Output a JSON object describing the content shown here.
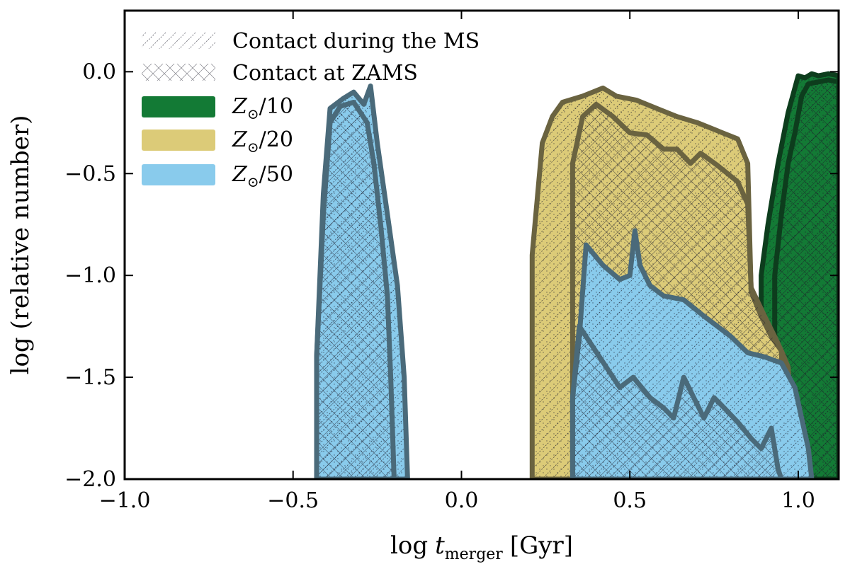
{
  "chart_data": {
    "type": "area",
    "xlabel_main": "log",
    "xlabel_var": "t",
    "xlabel_sub": "merger",
    "xlabel_unit": "[Gyr]",
    "ylabel": "log (relative number)",
    "xlim": [
      -1.0,
      1.12
    ],
    "ylim": [
      -2.0,
      0.3
    ],
    "xticks": [
      -1.0,
      -0.5,
      0.0,
      0.5,
      1.0
    ],
    "xtick_labels": [
      "−1.0",
      "−0.5",
      "0.0",
      "0.5",
      "1.0"
    ],
    "yticks": [
      0.0,
      -0.5,
      -1.0,
      -1.5,
      -2.0
    ],
    "ytick_labels": [
      "0.0",
      "−0.5",
      "−1.0",
      "−1.5",
      "−2.0"
    ],
    "grid": false,
    "legend_position": "top-left",
    "legend": [
      {
        "label": "Contact during the MS",
        "style": "hatch-single"
      },
      {
        "label": "Contact at ZAMS",
        "style": "hatch-cross"
      },
      {
        "label_var": "Z",
        "label_rest": "/10",
        "color": "#137a35"
      },
      {
        "label_var": "Z",
        "label_rest": "/20",
        "color": "#dccb78"
      },
      {
        "label_var": "Z",
        "label_rest": "/50",
        "color": "#89cbec"
      }
    ],
    "series": [
      {
        "name": "Z☉/10",
        "color": "#137a35",
        "edge": "#0d3d1d",
        "outer": [
          [
            0.89,
            -2.0
          ],
          [
            0.89,
            -1.0
          ],
          [
            0.91,
            -0.75
          ],
          [
            0.94,
            -0.45
          ],
          [
            0.97,
            -0.2
          ],
          [
            1.0,
            -0.02
          ],
          [
            1.02,
            -0.03
          ],
          [
            1.04,
            -0.01
          ],
          [
            1.06,
            -0.02
          ],
          [
            1.09,
            -0.01
          ],
          [
            1.12,
            -0.02
          ],
          [
            1.12,
            -2.0
          ]
        ],
        "contact_zams": [
          [
            0.93,
            -2.0
          ],
          [
            0.93,
            -1.0
          ],
          [
            0.95,
            -0.7
          ],
          [
            0.97,
            -0.45
          ],
          [
            0.99,
            -0.3
          ],
          [
            1.01,
            -0.12
          ],
          [
            1.03,
            -0.06
          ],
          [
            1.06,
            -0.05
          ],
          [
            1.09,
            -0.04
          ],
          [
            1.12,
            -0.05
          ],
          [
            1.12,
            -2.0
          ]
        ]
      },
      {
        "name": "Z☉/20",
        "color": "#dccb78",
        "edge": "#6a6340",
        "outer": [
          [
            0.21,
            -2.0
          ],
          [
            0.21,
            -0.9
          ],
          [
            0.24,
            -0.35
          ],
          [
            0.27,
            -0.22
          ],
          [
            0.3,
            -0.15
          ],
          [
            0.36,
            -0.12
          ],
          [
            0.42,
            -0.08
          ],
          [
            0.46,
            -0.12
          ],
          [
            0.52,
            -0.14
          ],
          [
            0.58,
            -0.18
          ],
          [
            0.64,
            -0.22
          ],
          [
            0.7,
            -0.25
          ],
          [
            0.76,
            -0.29
          ],
          [
            0.82,
            -0.33
          ],
          [
            0.85,
            -0.45
          ],
          [
            0.86,
            -1.08
          ],
          [
            0.89,
            -1.2
          ],
          [
            0.92,
            -1.3
          ],
          [
            0.95,
            -1.37
          ],
          [
            0.97,
            -1.45
          ],
          [
            0.99,
            -2.0
          ]
        ],
        "contact_zams": [
          [
            0.33,
            -2.0
          ],
          [
            0.33,
            -0.45
          ],
          [
            0.36,
            -0.22
          ],
          [
            0.4,
            -0.16
          ],
          [
            0.45,
            -0.22
          ],
          [
            0.5,
            -0.3
          ],
          [
            0.55,
            -0.31
          ],
          [
            0.6,
            -0.38
          ],
          [
            0.64,
            -0.38
          ],
          [
            0.68,
            -0.45
          ],
          [
            0.71,
            -0.4
          ],
          [
            0.76,
            -0.46
          ],
          [
            0.82,
            -0.54
          ],
          [
            0.85,
            -0.65
          ],
          [
            0.86,
            -1.06
          ],
          [
            0.9,
            -1.2
          ],
          [
            0.93,
            -1.3
          ],
          [
            0.95,
            -1.37
          ],
          [
            0.96,
            -2.0
          ]
        ]
      },
      {
        "name": "Z☉/50",
        "color": "#89cbec",
        "edge": "#4a6a7a",
        "outer_left": [
          [
            -0.43,
            -2.0
          ],
          [
            -0.43,
            -1.4
          ],
          [
            -0.41,
            -0.6
          ],
          [
            -0.39,
            -0.18
          ],
          [
            -0.35,
            -0.13
          ],
          [
            -0.32,
            -0.1
          ],
          [
            -0.29,
            -0.16
          ],
          [
            -0.27,
            -0.07
          ],
          [
            -0.25,
            -0.35
          ],
          [
            -0.22,
            -0.7
          ],
          [
            -0.19,
            -1.05
          ],
          [
            -0.17,
            -1.5
          ],
          [
            -0.16,
            -2.0
          ]
        ],
        "zams_left": [
          [
            -0.43,
            -2.0
          ],
          [
            -0.43,
            -1.4
          ],
          [
            -0.41,
            -0.7
          ],
          [
            -0.39,
            -0.25
          ],
          [
            -0.36,
            -0.17
          ],
          [
            -0.32,
            -0.15
          ],
          [
            -0.28,
            -0.25
          ],
          [
            -0.26,
            -0.45
          ],
          [
            -0.24,
            -0.75
          ],
          [
            -0.22,
            -1.1
          ],
          [
            -0.21,
            -1.5
          ],
          [
            -0.2,
            -2.0
          ]
        ],
        "outer_right": [
          [
            0.33,
            -2.0
          ],
          [
            0.33,
            -1.6
          ],
          [
            0.35,
            -1.3
          ],
          [
            0.37,
            -0.85
          ],
          [
            0.42,
            -0.95
          ],
          [
            0.47,
            -1.02
          ],
          [
            0.5,
            -1.0
          ],
          [
            0.515,
            -0.78
          ],
          [
            0.53,
            -0.95
          ],
          [
            0.56,
            -1.05
          ],
          [
            0.6,
            -1.1
          ],
          [
            0.66,
            -1.12
          ],
          [
            0.72,
            -1.2
          ],
          [
            0.76,
            -1.25
          ],
          [
            0.8,
            -1.3
          ],
          [
            0.85,
            -1.38
          ],
          [
            0.9,
            -1.4
          ],
          [
            0.95,
            -1.43
          ],
          [
            0.99,
            -1.55
          ],
          [
            1.01,
            -1.7
          ],
          [
            1.03,
            -1.85
          ],
          [
            1.04,
            -2.0
          ]
        ],
        "zams_right": [
          [
            0.33,
            -2.0
          ],
          [
            0.33,
            -1.6
          ],
          [
            0.35,
            -1.25
          ],
          [
            0.39,
            -1.35
          ],
          [
            0.43,
            -1.45
          ],
          [
            0.47,
            -1.55
          ],
          [
            0.51,
            -1.5
          ],
          [
            0.56,
            -1.6
          ],
          [
            0.6,
            -1.65
          ],
          [
            0.63,
            -1.7
          ],
          [
            0.66,
            -1.5
          ],
          [
            0.69,
            -1.6
          ],
          [
            0.72,
            -1.7
          ],
          [
            0.75,
            -1.6
          ],
          [
            0.78,
            -1.65
          ],
          [
            0.82,
            -1.72
          ],
          [
            0.86,
            -1.8
          ],
          [
            0.89,
            -1.85
          ],
          [
            0.92,
            -1.75
          ],
          [
            0.94,
            -1.95
          ],
          [
            0.95,
            -2.0
          ]
        ]
      }
    ]
  }
}
